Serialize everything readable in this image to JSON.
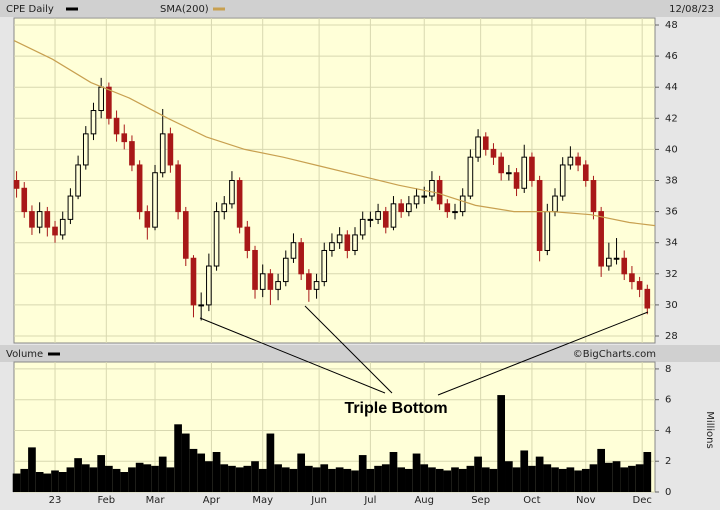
{
  "chart_data": [
    {
      "type": "candlestick",
      "title": "CPE Daily",
      "date": "12/08/23",
      "credit": "©BigCharts.com",
      "annotation": "Triple Bottom",
      "x": [
        1,
        4,
        7,
        10,
        13,
        16,
        19,
        22,
        25,
        28,
        31,
        34,
        37,
        40,
        43,
        46,
        49,
        52,
        55,
        58,
        61,
        64,
        67,
        70,
        73,
        76,
        79,
        82,
        85,
        88,
        91,
        94,
        97,
        100,
        103,
        106,
        109,
        112,
        115,
        118,
        121,
        124,
        127,
        130,
        133,
        136,
        139,
        142,
        145,
        148,
        151,
        154,
        157,
        160,
        163,
        166,
        169,
        172,
        175,
        178,
        181,
        184,
        187,
        190,
        193,
        196,
        199,
        202,
        205,
        208,
        211,
        214,
        217,
        220,
        223,
        226,
        229,
        232,
        235,
        238,
        241,
        244,
        247
      ],
      "series": [
        {
          "name": "CPE Daily",
          "color": "#000000",
          "down_color": "#a81818",
          "values": [
            [
              38,
              38.6,
              36.9,
              37.5
            ],
            [
              37.5,
              37.9,
              35.6,
              36
            ],
            [
              36,
              36.4,
              34.5,
              35
            ],
            [
              35,
              36.6,
              34.6,
              36
            ],
            [
              36,
              36.3,
              34.4,
              35
            ],
            [
              35,
              35.4,
              34,
              34.5
            ],
            [
              34.5,
              36,
              34.2,
              35.5
            ],
            [
              35.5,
              37.5,
              35.2,
              37
            ],
            [
              37,
              39.6,
              36.8,
              39
            ],
            [
              39,
              41.5,
              38.7,
              41
            ],
            [
              41,
              43,
              40.6,
              42.5
            ],
            [
              42.5,
              44.6,
              42,
              44
            ],
            [
              44,
              44.3,
              41.6,
              42
            ],
            [
              42,
              42.5,
              40.5,
              41
            ],
            [
              41,
              41.6,
              40,
              40.5
            ],
            [
              40.5,
              40.9,
              38.6,
              39
            ],
            [
              39,
              39.3,
              35.5,
              36
            ],
            [
              36,
              36.4,
              34.2,
              35
            ],
            [
              35,
              39,
              34.8,
              38.5
            ],
            [
              38.5,
              42.6,
              38.2,
              41
            ],
            [
              41,
              41.4,
              38.5,
              39
            ],
            [
              39,
              39.3,
              35.5,
              36
            ],
            [
              36,
              36.3,
              32.5,
              33
            ],
            [
              33,
              33.2,
              29.2,
              30
            ],
            [
              30,
              30.8,
              29,
              30
            ],
            [
              30,
              33.3,
              29.6,
              32.5
            ],
            [
              32.5,
              36.6,
              32.2,
              36
            ],
            [
              36,
              37,
              35.5,
              36.5
            ],
            [
              36.5,
              38.6,
              36.2,
              38
            ],
            [
              38,
              38.2,
              34.6,
              35
            ],
            [
              35,
              35.4,
              33,
              33.5
            ],
            [
              33.5,
              33.8,
              30.4,
              31
            ],
            [
              31,
              32.6,
              30.5,
              32
            ],
            [
              32,
              32.3,
              30,
              31
            ],
            [
              31,
              32,
              30.3,
              31.5
            ],
            [
              31.5,
              33.5,
              31.2,
              33
            ],
            [
              33,
              34.6,
              32.7,
              34
            ],
            [
              34,
              34.3,
              31.6,
              32
            ],
            [
              32,
              32.3,
              30.2,
              31
            ],
            [
              31,
              32,
              30.4,
              31.5
            ],
            [
              31.5,
              34,
              31.2,
              33.5
            ],
            [
              33.5,
              34.6,
              33.1,
              34
            ],
            [
              34,
              35,
              33.6,
              34.5
            ],
            [
              34.5,
              34.8,
              33,
              33.5
            ],
            [
              33.5,
              35,
              33.2,
              34.5
            ],
            [
              34.5,
              36,
              34.2,
              35.5
            ],
            [
              35.5,
              36,
              35,
              35.5
            ],
            [
              35.5,
              36.5,
              35.2,
              36
            ],
            [
              36,
              36.3,
              34.6,
              35
            ],
            [
              35,
              37,
              34.8,
              36.5
            ],
            [
              36.5,
              36.8,
              35.6,
              36
            ],
            [
              36,
              37,
              35.7,
              36.5
            ],
            [
              36.5,
              37.5,
              36.2,
              37
            ],
            [
              37,
              37.6,
              36.5,
              37
            ],
            [
              37,
              38.6,
              36.7,
              38
            ],
            [
              38,
              38.3,
              36.1,
              36.5
            ],
            [
              36.5,
              36.8,
              35.6,
              36
            ],
            [
              36,
              36.5,
              35.5,
              36
            ],
            [
              36,
              37.5,
              35.7,
              37
            ],
            [
              37,
              40,
              36.8,
              39.5
            ],
            [
              39.5,
              41.3,
              39.2,
              40.8
            ],
            [
              40.8,
              41.1,
              39.6,
              40
            ],
            [
              40,
              40.4,
              39,
              39.5
            ],
            [
              39.5,
              39.8,
              38,
              38.5
            ],
            [
              38.5,
              39,
              38,
              38.5
            ],
            [
              38.5,
              38.8,
              37,
              37.5
            ],
            [
              37.5,
              40.3,
              37.2,
              39.5
            ],
            [
              39.5,
              39.8,
              37.6,
              38
            ],
            [
              38,
              38.3,
              32.8,
              33.5
            ],
            [
              33.5,
              36.5,
              33.2,
              36
            ],
            [
              36,
              37.5,
              35.7,
              37
            ],
            [
              37,
              39.5,
              36.7,
              39
            ],
            [
              39,
              40.2,
              38.7,
              39.5
            ],
            [
              39.5,
              39.8,
              38.6,
              39
            ],
            [
              39,
              39.3,
              37.6,
              38
            ],
            [
              38,
              38.3,
              35.5,
              36
            ],
            [
              36,
              36.3,
              31.8,
              32.5
            ],
            [
              32.5,
              34,
              32.2,
              33
            ],
            [
              33,
              34.3,
              32.6,
              33
            ],
            [
              33,
              33.5,
              31.6,
              32
            ],
            [
              32,
              32.5,
              31,
              31.5
            ],
            [
              31.5,
              31.8,
              30.5,
              31
            ],
            [
              31,
              31.3,
              29.4,
              29.8
            ]
          ]
        },
        {
          "name": "SMA(200)",
          "color": "#c8a050",
          "x": [
            0,
            15,
            30,
            45,
            60,
            75,
            90,
            105,
            120,
            135,
            150,
            165,
            180,
            195,
            210,
            225,
            240,
            250
          ],
          "values": [
            47,
            45.8,
            44.3,
            43.3,
            42,
            40.8,
            40,
            39.5,
            38.9,
            38.3,
            37.7,
            37.2,
            36.4,
            36,
            36,
            35.8,
            35.3,
            35.1
          ]
        }
      ],
      "xlim": [
        0,
        250
      ],
      "xticks": [
        {
          "value": 16,
          "label": "23"
        },
        {
          "value": 36,
          "label": "Feb"
        },
        {
          "value": 55,
          "label": "Mar"
        },
        {
          "value": 77,
          "label": "Apr"
        },
        {
          "value": 97,
          "label": "May"
        },
        {
          "value": 119,
          "label": "Jun"
        },
        {
          "value": 139,
          "label": "Jul"
        },
        {
          "value": 160,
          "label": "Aug"
        },
        {
          "value": 182,
          "label": "Sep"
        },
        {
          "value": 202,
          "label": "Oct"
        },
        {
          "value": 223,
          "label": "Nov"
        },
        {
          "value": 245,
          "label": "Dec"
        }
      ],
      "ylim": [
        27.55,
        48.45
      ],
      "yticks": [
        28,
        30,
        32,
        34,
        36,
        38,
        40,
        42,
        44,
        46,
        48
      ],
      "grid": true
    },
    {
      "type": "bar",
      "title": "Volume",
      "color": "#000000",
      "axis_label": "Millions",
      "values": [
        1.2,
        1.5,
        2.9,
        1.3,
        1.2,
        1.4,
        1.3,
        1.6,
        2.2,
        1.8,
        1.6,
        2.4,
        1.7,
        1.5,
        1.3,
        1.6,
        1.9,
        1.8,
        1.7,
        2.3,
        1.6,
        4.4,
        3.8,
        2.8,
        2.5,
        2.0,
        2.6,
        1.8,
        1.7,
        1.6,
        1.7,
        2.0,
        1.5,
        3.8,
        1.8,
        1.6,
        1.5,
        2.5,
        1.7,
        1.6,
        1.8,
        1.5,
        1.6,
        1.5,
        1.4,
        2.4,
        1.5,
        1.7,
        1.8,
        2.6,
        1.6,
        1.5,
        2.5,
        1.8,
        1.6,
        1.5,
        1.4,
        1.6,
        1.5,
        1.7,
        2.3,
        1.6,
        1.5,
        6.3,
        2.0,
        1.6,
        2.7,
        1.7,
        2.3,
        1.8,
        1.6,
        1.5,
        1.6,
        1.4,
        1.5,
        1.8,
        2.8,
        1.9,
        2.0,
        1.6,
        1.7,
        1.8,
        2.6
      ],
      "ylim": [
        0,
        8.45
      ],
      "yticks": [
        0,
        2,
        4,
        6,
        8
      ],
      "grid": true
    }
  ]
}
